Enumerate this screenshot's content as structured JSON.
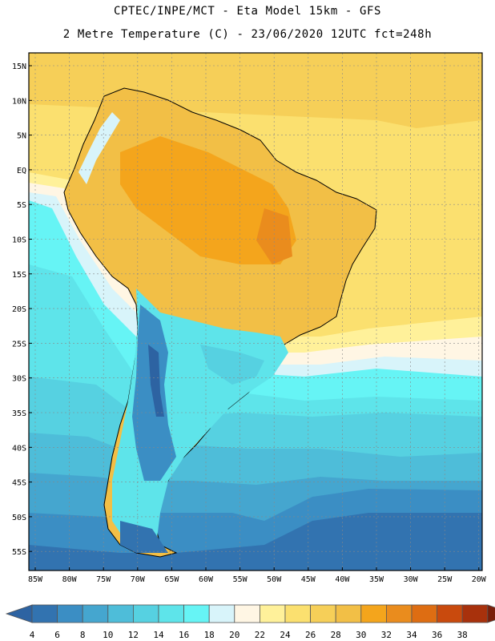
{
  "header": {
    "line1": "CPTEC/INPE/MCT -  Eta Model 15km - GFS",
    "line2": "2 Metre Temperature (C) - 23/06/2020 12UTC fct=248h"
  },
  "map": {
    "lat_labels": [
      "15N",
      "10N",
      "5N",
      "EQ",
      "5S",
      "10S",
      "15S",
      "20S",
      "25S",
      "30S",
      "35S",
      "40S",
      "45S",
      "50S",
      "55S"
    ],
    "lon_labels": [
      "85W",
      "80W",
      "75W",
      "70W",
      "65W",
      "60W",
      "55W",
      "50W",
      "45W",
      "40W",
      "35W",
      "30W",
      "25W",
      "20W"
    ]
  },
  "colorbar": {
    "labels": [
      "4",
      "6",
      "8",
      "10",
      "12",
      "14",
      "16",
      "18",
      "20",
      "22",
      "24",
      "26",
      "28",
      "30",
      "32",
      "34",
      "36",
      "38"
    ],
    "colors": [
      "#2d63a2",
      "#3273b0",
      "#3b8ec4",
      "#45a6cf",
      "#4ebdd9",
      "#56d1e1",
      "#5ee4ea",
      "#66f4f5",
      "#d8f4fa",
      "#fff6e4",
      "#fff19a",
      "#fbe06f",
      "#f6cf58",
      "#f2bf46",
      "#f4a51c",
      "#ea8c1d",
      "#de6d12",
      "#c94a0d",
      "#a8310c",
      "#7a1e09"
    ]
  }
}
